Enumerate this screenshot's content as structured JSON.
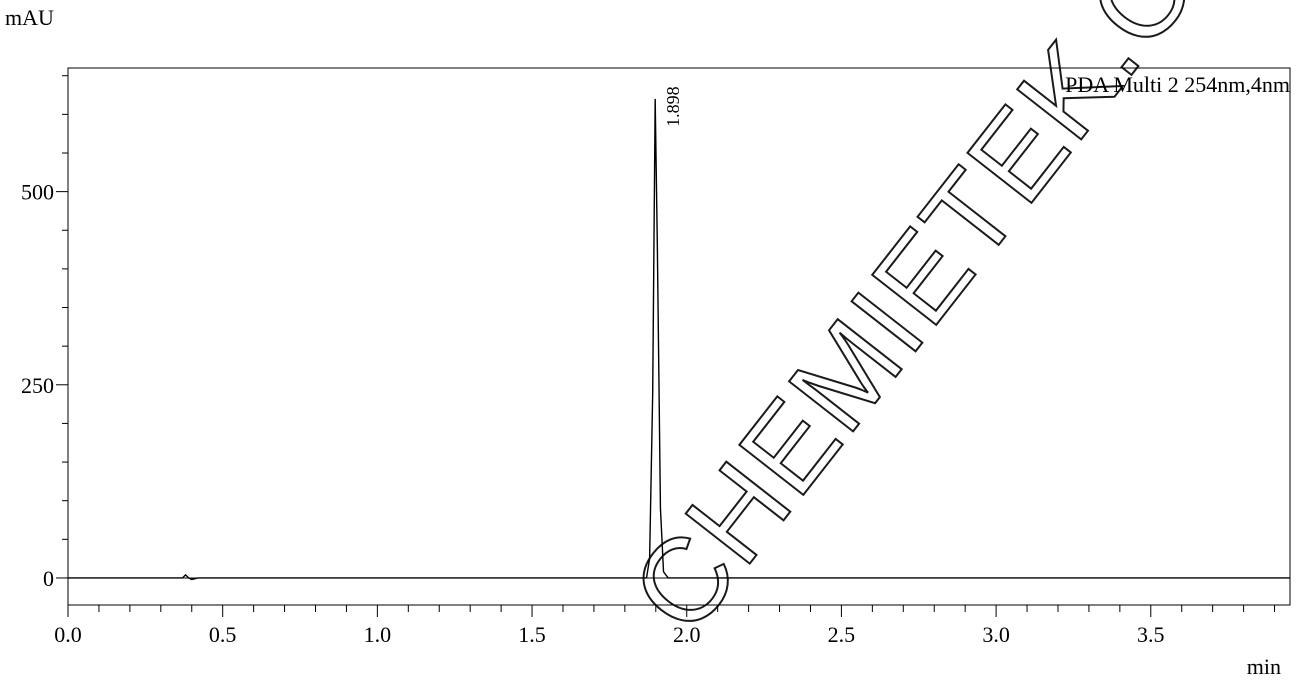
{
  "chart_data": {
    "type": "line",
    "title": "",
    "ylabel": "mAU",
    "xlabel": "min",
    "legend": "PDA Multi 2 254nm,4nm",
    "legend_position": "top-right",
    "xlim": [
      0.0,
      3.95
    ],
    "ylim": [
      -35,
      660
    ],
    "x_major_ticks": [
      0.0,
      0.5,
      1.0,
      1.5,
      2.0,
      2.5,
      3.0,
      3.5
    ],
    "x_tick_labels": [
      "0.0",
      "0.5",
      "1.0",
      "1.5",
      "2.0",
      "2.5",
      "3.0",
      "3.5"
    ],
    "x_minor_step": 0.1,
    "y_major_ticks": [
      0,
      250,
      500
    ],
    "y_tick_labels": [
      "0",
      "250",
      "500"
    ],
    "y_minor_step": 50,
    "grid": false,
    "series": [
      {
        "x": [
          0.0,
          0.37,
          0.38,
          0.39,
          0.4,
          0.42,
          0.9,
          1.5,
          1.87,
          1.88,
          1.89,
          1.898,
          1.905,
          1.915,
          1.925,
          1.94,
          2.5,
          3.0,
          3.95
        ],
        "y": [
          0,
          0,
          4,
          0,
          -2,
          0,
          0,
          0,
          0,
          25,
          240,
          620,
          430,
          90,
          8,
          0,
          0,
          0,
          0
        ]
      }
    ],
    "peaks": [
      {
        "x": 1.898,
        "y": 620,
        "label": "1.898"
      }
    ]
  },
  "watermark": "CHEMIETEK.COM"
}
